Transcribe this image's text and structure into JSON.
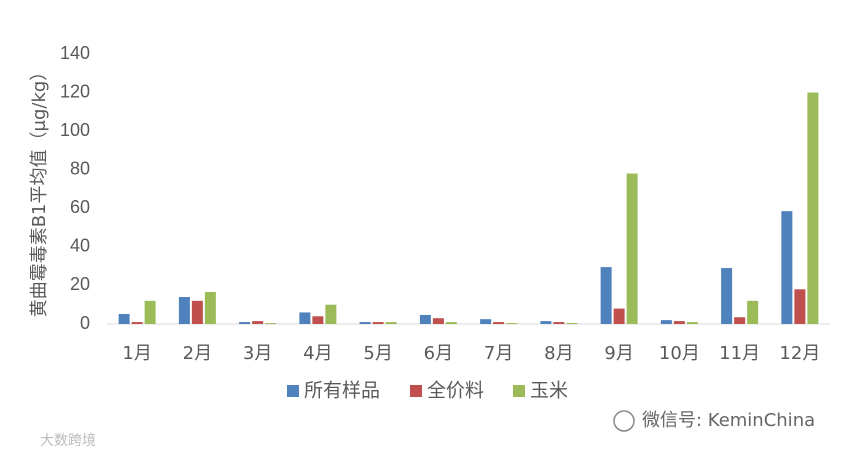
{
  "chart_data": {
    "type": "bar",
    "y_label": "黄曲霉毒素B1平均值（μg/kg）",
    "categories": [
      "1月",
      "2月",
      "3月",
      "4月",
      "5月",
      "6月",
      "7月",
      "8月",
      "9月",
      "10月",
      "11月",
      "12月"
    ],
    "series": [
      {
        "name": "所有样品",
        "color": "#4f81bd",
        "values": [
          5.2,
          14,
          1,
          6,
          1,
          4.7,
          2.5,
          1.5,
          29.5,
          2,
          29,
          58.5
        ]
      },
      {
        "name": "全价料",
        "color": "#c0504d",
        "values": [
          1,
          12,
          1.5,
          4,
          1,
          3,
          1,
          1,
          8,
          1.5,
          3.5,
          18
        ]
      },
      {
        "name": "玉米",
        "color": "#9bbb59",
        "values": [
          12,
          16.6,
          0.5,
          10,
          1,
          1,
          0.5,
          0.5,
          78,
          1,
          12,
          120
        ]
      }
    ],
    "ylim": [
      0,
      140
    ],
    "yticks": [
      0,
      20,
      40,
      60,
      80,
      100,
      120,
      140
    ],
    "legend": "bottom",
    "annotations": [
      "微信号: KeminChina",
      "大数跨境"
    ]
  }
}
